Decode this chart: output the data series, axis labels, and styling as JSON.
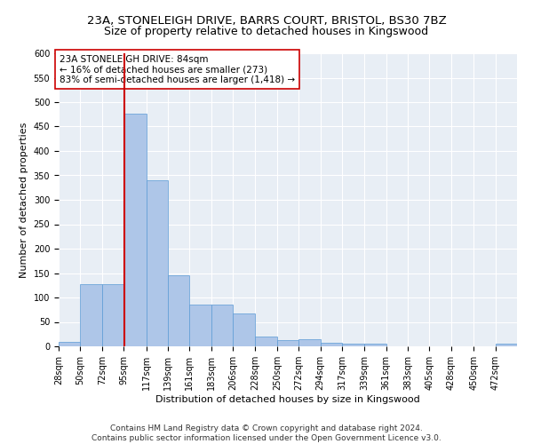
{
  "title_line1": "23A, STONELEIGH DRIVE, BARRS COURT, BRISTOL, BS30 7BZ",
  "title_line2": "Size of property relative to detached houses in Kingswood",
  "xlabel": "Distribution of detached houses by size in Kingswood",
  "ylabel": "Number of detached properties",
  "annotation_line1": "23A STONELEIGH DRIVE: 84sqm",
  "annotation_line2": "← 16% of detached houses are smaller (273)",
  "annotation_line3": "83% of semi-detached houses are larger (1,418) →",
  "footer_line1": "Contains HM Land Registry data © Crown copyright and database right 2024.",
  "footer_line2": "Contains public sector information licensed under the Open Government Licence v3.0.",
  "bin_labels": [
    "28sqm",
    "50sqm",
    "72sqm",
    "95sqm",
    "117sqm",
    "139sqm",
    "161sqm",
    "183sqm",
    "206sqm",
    "228sqm",
    "250sqm",
    "272sqm",
    "294sqm",
    "317sqm",
    "339sqm",
    "361sqm",
    "383sqm",
    "405sqm",
    "428sqm",
    "450sqm",
    "472sqm"
  ],
  "bin_edges": [
    17,
    39,
    61,
    83,
    106,
    128,
    150,
    172,
    194,
    217,
    239,
    261,
    283,
    305,
    328,
    350,
    372,
    394,
    416,
    439,
    461,
    483
  ],
  "bar_values": [
    10,
    127,
    128,
    477,
    340,
    145,
    85,
    85,
    68,
    20,
    12,
    15,
    8,
    5,
    5,
    0,
    0,
    0,
    0,
    0,
    5
  ],
  "bar_fill_color": "#aec6e8",
  "bar_edge_color": "#5b9bd5",
  "vline_x": 84,
  "vline_color": "#cc0000",
  "annotation_box_color": "#cc0000",
  "bg_color": "#e8eef5",
  "grid_color": "#ffffff",
  "ylim": [
    0,
    600
  ],
  "yticks": [
    0,
    50,
    100,
    150,
    200,
    250,
    300,
    350,
    400,
    450,
    500,
    550,
    600
  ],
  "title_fontsize": 9.5,
  "subtitle_fontsize": 9,
  "axis_label_fontsize": 8,
  "tick_fontsize": 7,
  "annotation_fontsize": 7.5,
  "footer_fontsize": 6.5
}
